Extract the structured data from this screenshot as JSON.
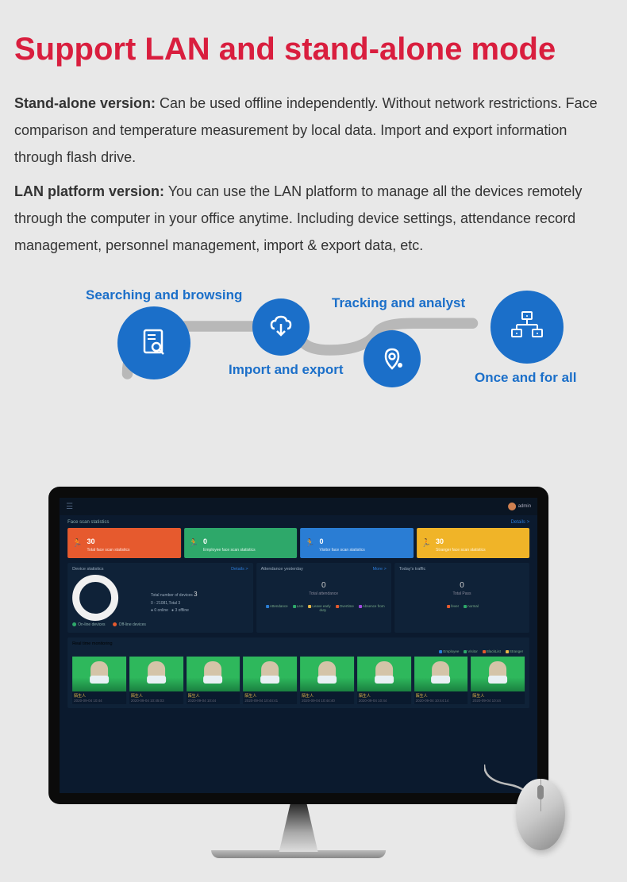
{
  "title": "Support LAN and stand-alone mode",
  "desc1_bold": "Stand-alone version:",
  "desc1_text": " Can be used offline independently. Without network restrictions. Face comparison and temperature measurement by local data. Import and export information through flash drive.",
  "desc2_bold": "LAN platform version:",
  "desc2_text": "  You can use the LAN platform to manage all the devices remotely through the computer in your office anytime. Including device settings, attendance record management, personnel management, import & export data, etc.",
  "features": {
    "f1": "Searching and browsing",
    "f2": "Import and export",
    "f3": "Tracking and analyst",
    "f4": "Once and for all"
  },
  "colors": {
    "title": "#d91e3e",
    "feature_blue": "#1b6fc9",
    "card1": "#e65a2e",
    "card2": "#2ea86a",
    "card3": "#2a7dd4",
    "card4": "#f0b428",
    "screen_bg": "#0b1a2e",
    "panel_bg": "#0f2238"
  },
  "dashboard": {
    "user": "admin",
    "section1_title": "Face scan statistics",
    "details": "Details >",
    "cards": [
      {
        "num": "30",
        "label": "Total face scan statistics"
      },
      {
        "num": "0",
        "label": "Employee face scan statistics"
      },
      {
        "num": "0",
        "label": "Visitor face scan statistics"
      },
      {
        "num": "30",
        "label": "Stranger face scan statistics"
      }
    ],
    "device": {
      "title": "Device statistics",
      "total_label": "Total number of devices",
      "total_num": "3",
      "range": "0 - 21081,Total 3",
      "online": "0 online",
      "offline": "3 offline",
      "legend_on": "On-line devices",
      "legend_off": "Off-line devices"
    },
    "attendance": {
      "title": "Attendance yesterday",
      "more": "More >",
      "value": "0",
      "label": "Total attendance",
      "legend": [
        {
          "c": "#2a7dd4",
          "t": "Attendance"
        },
        {
          "c": "#2ea86a",
          "t": "Late"
        },
        {
          "c": "#e6b84a",
          "t": "Leave early"
        },
        {
          "c": "#e65a2e",
          "t": "Overtime"
        },
        {
          "c": "#a04ae0",
          "t": "Absence from duty"
        }
      ]
    },
    "traffic": {
      "title": "Today's traffic",
      "value": "0",
      "label": "Total Pass",
      "legend": [
        {
          "c": "#e65a2e",
          "t": "fever"
        },
        {
          "c": "#2ea86a",
          "t": "normal"
        }
      ]
    },
    "monitoring": {
      "title": "Real time monitoring",
      "filter_legend": [
        {
          "c": "#2a7dd4",
          "t": "Employee"
        },
        {
          "c": "#2ea86a",
          "t": "Visitor"
        },
        {
          "c": "#e65a2e",
          "t": "BlackList"
        },
        {
          "c": "#e6b84a",
          "t": "Stranger"
        }
      ],
      "tiles": [
        {
          "name": "陌生人",
          "time": "2020-09-04 10:44"
        },
        {
          "name": "陌生人",
          "time": "2020-09-04 10:45:03"
        },
        {
          "name": "陌生人",
          "time": "2020-09-04 10:44"
        },
        {
          "name": "陌生人",
          "time": "2020-09-04 10:44:41"
        },
        {
          "name": "陌生人",
          "time": "2020-09-04 10:44:40"
        },
        {
          "name": "陌生人",
          "time": "2020-09-04 10:44"
        },
        {
          "name": "陌生人",
          "time": "2020-09-04 10:44:14"
        },
        {
          "name": "陌生人",
          "time": "2020-09-04 10:44"
        }
      ]
    }
  }
}
